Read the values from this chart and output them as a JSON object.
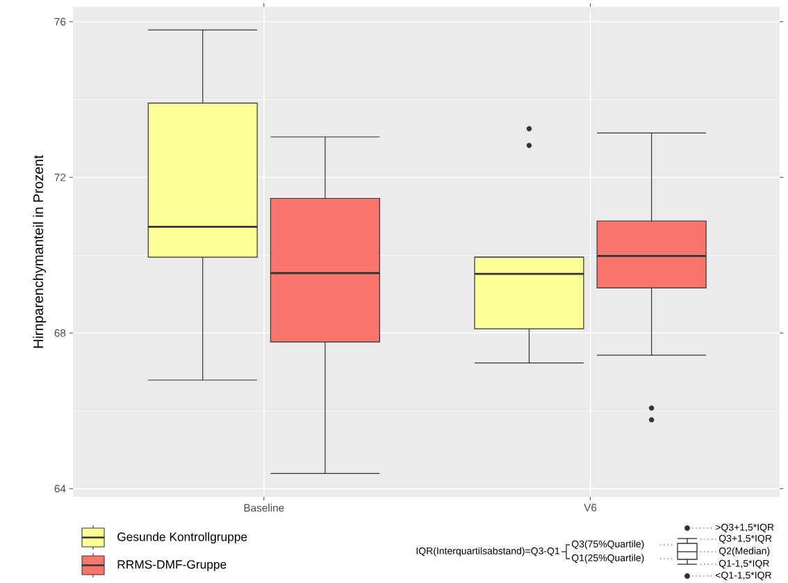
{
  "chart_data": {
    "type": "box",
    "ylabel": "Hirnparenchymanteil in Prozent",
    "categories": [
      "Baseline",
      "V6"
    ],
    "series": [
      {
        "name": "Gesunde Kontrollgruppe",
        "color": "#ffff99",
        "boxes": [
          {
            "low": 66.79,
            "q1": 69.95,
            "median": 70.73,
            "q3": 73.91,
            "high": 75.79
          },
          {
            "low": 67.23,
            "q1": 68.11,
            "median": 69.52,
            "q3": 69.95,
            "high": 69.95,
            "outliers": [
              73.25,
              72.82
            ]
          }
        ]
      },
      {
        "name": "RRMS-DMF-Gruppe",
        "color": "#f8766d",
        "boxes": [
          {
            "low": 64.39,
            "q1": 67.77,
            "median": 69.54,
            "q3": 71.46,
            "high": 73.04
          },
          {
            "low": 67.43,
            "q1": 69.16,
            "median": 69.98,
            "q3": 70.88,
            "high": 73.14,
            "outliers": [
              66.07,
              65.77
            ]
          }
        ]
      }
    ],
    "ylim": [
      63.79,
      76.38
    ],
    "yticks": [
      64,
      68,
      72,
      76
    ],
    "grid": true,
    "legend": "bottom left",
    "annotations": [
      "IQR(Interquartilsabstand)=Q3-Q1",
      "Q3(75%Quartile)",
      "Q1(25%Quartile)",
      ">Q3+1,5*IQR",
      "Q3+1,5*IQR",
      "Q2(Median)",
      "Q1-1,5*IQR",
      "<Q1-1,5*IQR"
    ]
  }
}
